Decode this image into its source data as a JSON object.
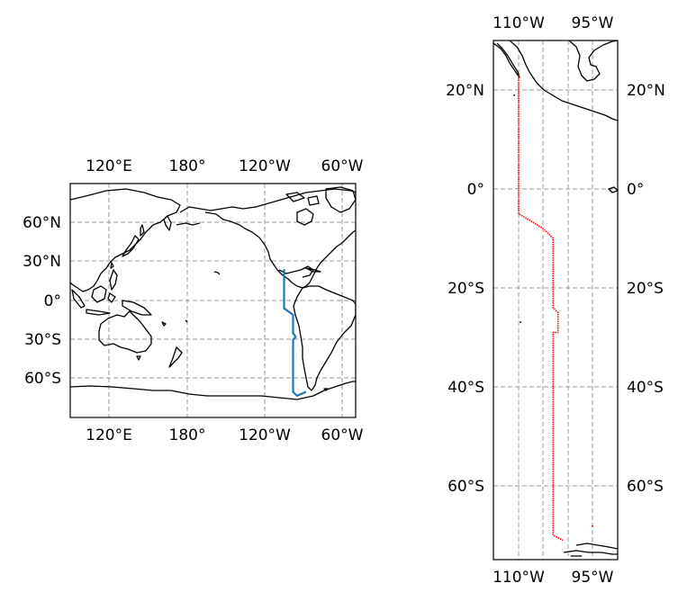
{
  "colors": {
    "coast": "#000000",
    "grid": "#999999",
    "track_left": "#1f77b4",
    "track_right": "#ff0000",
    "frame": "#000000"
  },
  "left_map": {
    "projection": "PlateCarree",
    "lon_range": [
      90,
      -50
    ],
    "lat_range": [
      -90,
      90
    ],
    "lon_ticks": [
      "120°E",
      "180°",
      "120°W",
      "60°W"
    ],
    "lat_ticks": [
      "60°N",
      "30°N",
      "0°",
      "30°S",
      "60°S"
    ],
    "track": [
      [
        -105,
        24
      ],
      [
        -105,
        -6
      ],
      [
        -98,
        -11
      ],
      [
        -98,
        -25
      ],
      [
        -96,
        -28
      ],
      [
        -98,
        -30
      ],
      [
        -98,
        -70
      ],
      [
        -95,
        -73
      ],
      [
        -88,
        -70
      ]
    ]
  },
  "right_map": {
    "projection": "PlateCarree",
    "lon_range": [
      -115,
      -90
    ],
    "lat_range": [
      -75,
      30
    ],
    "lon_ticks": [
      "110°W",
      "95°W"
    ],
    "lat_ticks_left": [
      "20°N",
      "0°",
      "20°S",
      "40°S",
      "60°S"
    ],
    "lat_ticks_right": [
      "20°N",
      "0°",
      "20°S",
      "40°S",
      "60°S"
    ],
    "track": [
      [
        -110,
        23
      ],
      [
        -110,
        -5
      ],
      [
        -105,
        -8
      ],
      [
        -103,
        -10
      ],
      [
        -103,
        -24
      ],
      [
        -102,
        -25
      ],
      [
        -102,
        -29
      ],
      [
        -103,
        -29
      ],
      [
        -103,
        -70
      ],
      [
        -101,
        -71
      ]
    ]
  }
}
